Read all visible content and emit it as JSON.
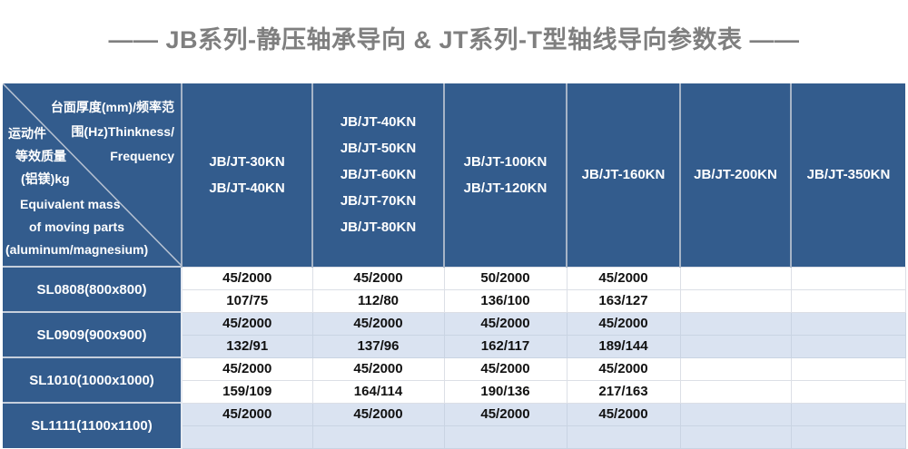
{
  "page_title": "——  JB系列-静压轴承导向 & JT系列-T型轴线导向参数表  ——",
  "colors": {
    "header_blue": "#335C8D",
    "shaded_row_blue": "#DAE3F1",
    "title_gray": "#7f7f7f",
    "grid_light": "#DCDFE6"
  },
  "table": {
    "corner": {
      "top_lines": [
        "台面厚度(mm)/频率范",
        "围(Hz)Thinkness/",
        "Frequency"
      ],
      "left_lines": [
        "运动件",
        "等效质量",
        "(铝镁)kg"
      ],
      "bottom_lines": [
        "Equivalent mass",
        "of moving parts",
        "(aluminum/magnesium)"
      ]
    },
    "columns": [
      {
        "lines": [
          "JB/JT-30KN",
          "JB/JT-40KN"
        ]
      },
      {
        "lines": [
          "JB/JT-40KN",
          "JB/JT-50KN",
          "JB/JT-60KN",
          "JB/JT-70KN",
          "JB/JT-80KN"
        ]
      },
      {
        "lines": [
          "JB/JT-100KN",
          "JB/JT-120KN"
        ]
      },
      {
        "lines": [
          "JB/JT-160KN"
        ]
      },
      {
        "lines": [
          "JB/JT-200KN"
        ]
      },
      {
        "lines": [
          "JB/JT-350KN"
        ]
      }
    ],
    "rows": [
      {
        "model": "SL0808(800x800)",
        "shaded": false,
        "thickness_frequency": [
          "45/2000",
          "45/2000",
          "50/2000",
          "45/2000",
          "",
          ""
        ],
        "mass_values": [
          "107/75",
          "112/80",
          "136/100",
          "163/127",
          "",
          ""
        ]
      },
      {
        "model": "SL0909(900x900)",
        "shaded": true,
        "thickness_frequency": [
          "45/2000",
          "45/2000",
          "45/2000",
          "45/2000",
          "",
          ""
        ],
        "mass_values": [
          "132/91",
          "137/96",
          "162/117",
          "189/144",
          "",
          ""
        ]
      },
      {
        "model": "SL1010(1000x1000)",
        "shaded": false,
        "thickness_frequency": [
          "45/2000",
          "45/2000",
          "45/2000",
          "45/2000",
          "",
          ""
        ],
        "mass_values": [
          "159/109",
          "164/114",
          "190/136",
          "217/163",
          "",
          ""
        ]
      },
      {
        "model": "SL1111(1100x1100)",
        "shaded": true,
        "thickness_frequency": [
          "45/2000",
          "45/2000",
          "45/2000",
          "45/2000",
          "",
          ""
        ],
        "mass_values": [
          "",
          "",
          "",
          "",
          "",
          ""
        ]
      }
    ]
  }
}
